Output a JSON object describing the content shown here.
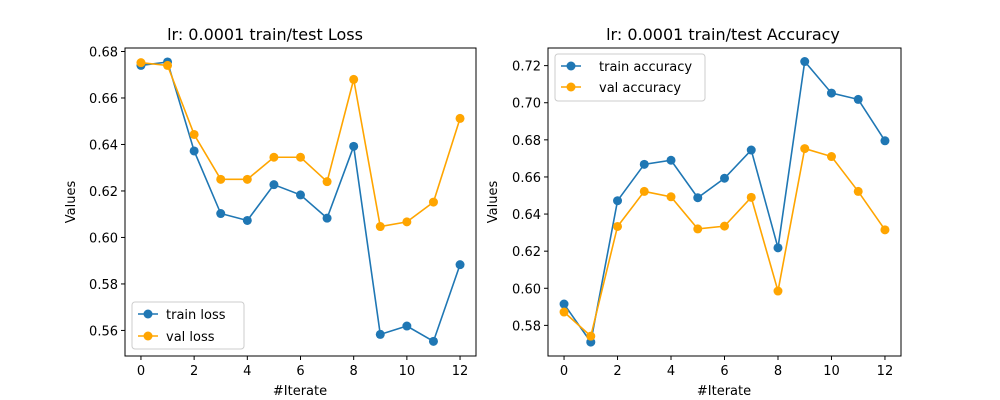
{
  "colors": {
    "train": "#1f77b4",
    "val": "#ffa500"
  },
  "chart_data": [
    {
      "type": "line",
      "title": "lr: 0.0001 train/test Loss",
      "xlabel": "#Iterate",
      "ylabel": "Values",
      "x": [
        0,
        1,
        2,
        3,
        4,
        5,
        6,
        7,
        8,
        9,
        10,
        11,
        12
      ],
      "xlim": [
        -0.6,
        12.6
      ],
      "ylim": [
        0.549,
        0.6815
      ],
      "xticks": [
        0,
        2,
        4,
        6,
        8,
        10,
        12
      ],
      "yticks": [
        0.56,
        0.58,
        0.6,
        0.62,
        0.64,
        0.66,
        0.68
      ],
      "ytick_labels": [
        "0.56",
        "0.58",
        "0.60",
        "0.62",
        "0.64",
        "0.66",
        "0.68"
      ],
      "legend_position": "lower-left",
      "grid": false,
      "series": [
        {
          "name": "train loss",
          "color": "#1f77b4",
          "values": [
            0.674,
            0.6755,
            0.6372,
            0.6103,
            0.6073,
            0.6227,
            0.6183,
            0.6083,
            0.6392,
            0.5583,
            0.5619,
            0.5553,
            0.5883
          ]
        },
        {
          "name": "val loss",
          "color": "#ffa500",
          "values": [
            0.6752,
            0.674,
            0.6443,
            0.625,
            0.625,
            0.6345,
            0.6345,
            0.624,
            0.668,
            0.6047,
            0.6067,
            0.6152,
            0.6512
          ]
        }
      ]
    },
    {
      "type": "line",
      "title": "lr: 0.0001 train/test Accuracy",
      "xlabel": "#Iterate",
      "ylabel": "Values",
      "x": [
        0,
        1,
        2,
        3,
        4,
        5,
        6,
        7,
        8,
        9,
        10,
        11,
        12
      ],
      "xlim": [
        -0.6,
        12.6
      ],
      "ylim": [
        0.5635,
        0.7295
      ],
      "xticks": [
        0,
        2,
        4,
        6,
        8,
        10,
        12
      ],
      "yticks": [
        0.58,
        0.6,
        0.62,
        0.64,
        0.66,
        0.68,
        0.7,
        0.72
      ],
      "ytick_labels": [
        "0.58",
        "0.60",
        "0.62",
        "0.64",
        "0.66",
        "0.68",
        "0.70",
        "0.72"
      ],
      "legend_position": "upper-left",
      "grid": false,
      "series": [
        {
          "name": "train accuracy",
          "color": "#1f77b4",
          "values": [
            0.5915,
            0.571,
            0.6472,
            0.6668,
            0.669,
            0.6488,
            0.6593,
            0.6745,
            0.6218,
            0.7222,
            0.7052,
            0.7018,
            0.6795
          ]
        },
        {
          "name": "val accuracy",
          "color": "#ffa500",
          "values": [
            0.5872,
            0.5742,
            0.6333,
            0.6522,
            0.6493,
            0.632,
            0.6335,
            0.649,
            0.5985,
            0.6753,
            0.671,
            0.6522,
            0.6315
          ]
        }
      ]
    }
  ]
}
